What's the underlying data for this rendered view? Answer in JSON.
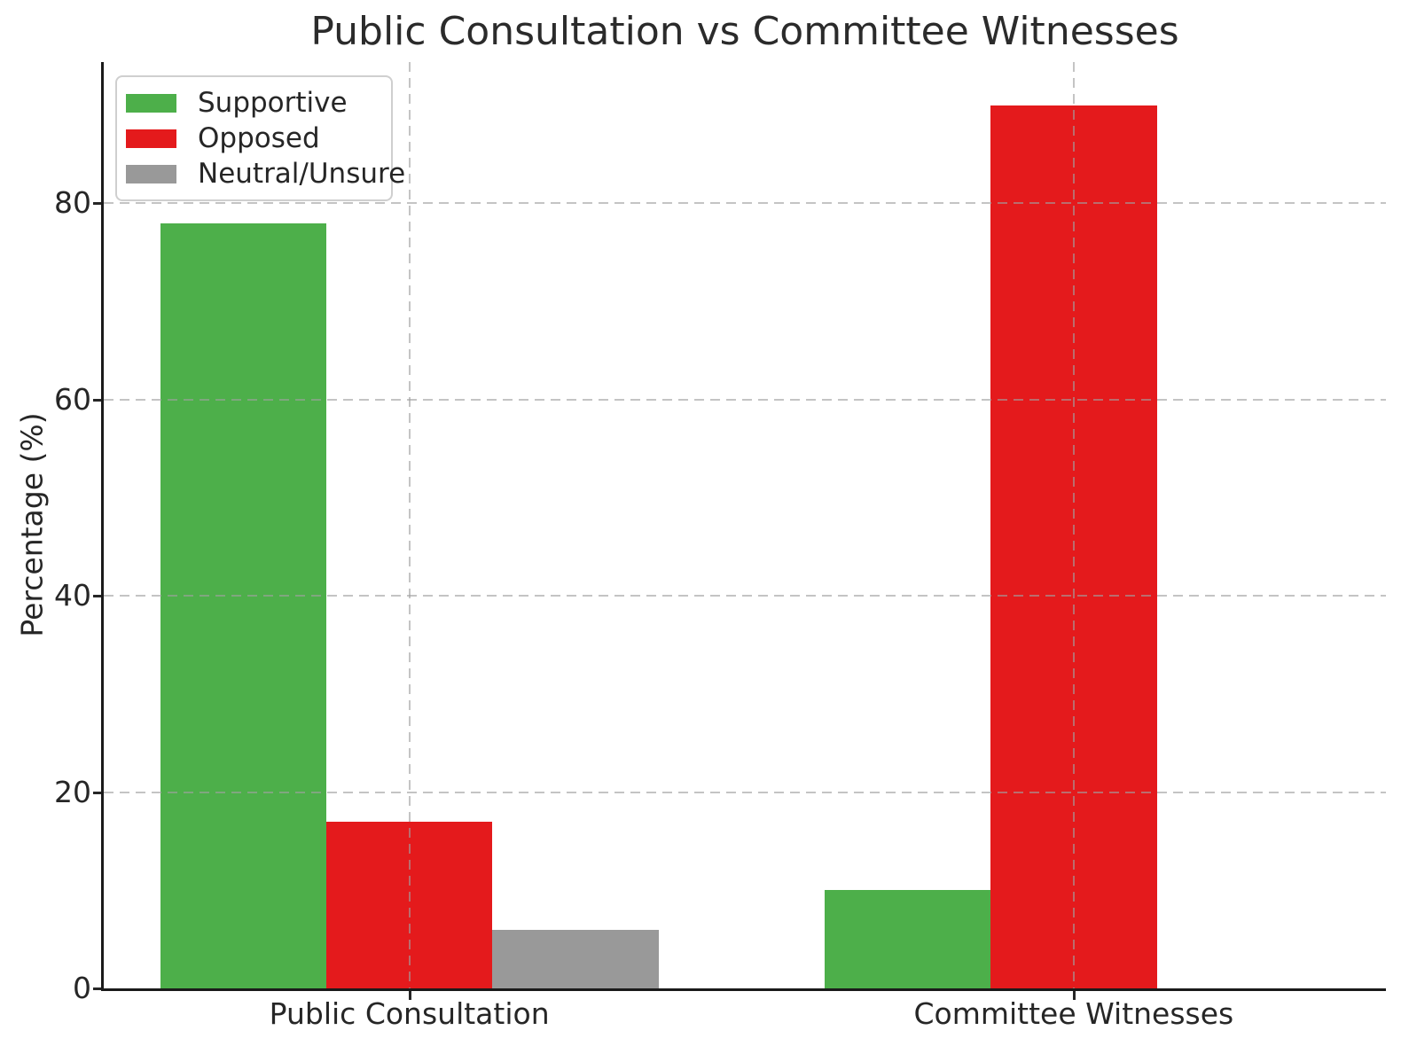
{
  "chart_data": {
    "type": "bar",
    "title": "Public Consultation vs Committee Witnesses",
    "xlabel": "",
    "ylabel": "Percentage (%)",
    "categories": [
      "Public Consultation",
      "Committee Witnesses"
    ],
    "series": [
      {
        "name": "Supportive",
        "color": "#4daf4a",
        "values": [
          78,
          10
        ]
      },
      {
        "name": "Opposed",
        "color": "#e41a1c",
        "values": [
          17,
          90
        ]
      },
      {
        "name": "Neutral/Unsure",
        "color": "#999999",
        "values": [
          6,
          0
        ]
      }
    ],
    "yticks": [
      0,
      20,
      40,
      60,
      80
    ],
    "ylim": [
      0,
      94.4
    ],
    "xlim": [
      -0.46,
      1.47
    ],
    "x_positions": [
      0,
      1
    ],
    "bar_width": 0.25,
    "grid": {
      "on": true,
      "style": "dashed",
      "color": "#c9c9c9"
    },
    "legend": {
      "position": "upper-left",
      "entries": [
        "Supportive",
        "Opposed",
        "Neutral/Unsure"
      ]
    }
  }
}
